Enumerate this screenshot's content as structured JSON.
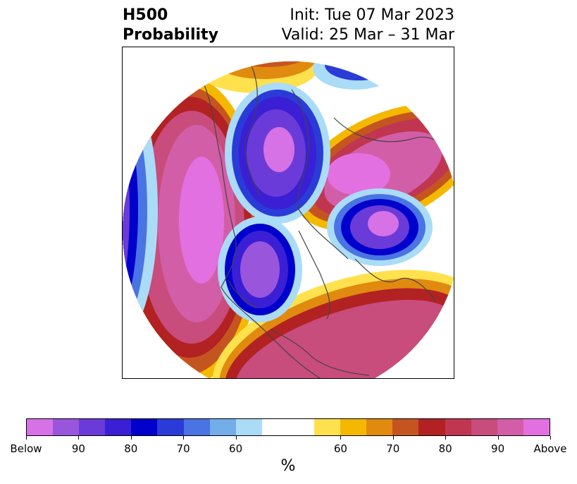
{
  "header": {
    "title_line1": "H500",
    "title_line2": "Probability",
    "init_label": "Init: Tue 07 Mar 2023",
    "valid_label": "Valid: 25 Mar – 31 Mar"
  },
  "map": {
    "projection": "north-polar-stereographic",
    "regions": {
      "below": {
        "label": "Below"
      },
      "above": {
        "label": "Above"
      }
    }
  },
  "colorbar": {
    "bins": [
      {
        "color": "#d671e6"
      },
      {
        "color": "#9a55dd"
      },
      {
        "color": "#6a3bd8"
      },
      {
        "color": "#3a1fd5"
      },
      {
        "color": "#0000cc"
      },
      {
        "color": "#2a3bd8"
      },
      {
        "color": "#4a73e3"
      },
      {
        "color": "#73aee8"
      },
      {
        "color": "#aadcf7"
      },
      {
        "color": "#ffffff"
      },
      {
        "color": "#ffe14d"
      },
      {
        "color": "#f5b800"
      },
      {
        "color": "#e08a10"
      },
      {
        "color": "#c55520"
      },
      {
        "color": "#b22222"
      },
      {
        "color": "#c03650"
      },
      {
        "color": "#c84c7c"
      },
      {
        "color": "#d35ea8"
      },
      {
        "color": "#e370e0"
      }
    ],
    "ticks": [
      "Below",
      "90",
      "80",
      "70",
      "60",
      "60",
      "70",
      "80",
      "90",
      "Above"
    ],
    "unit": "%"
  }
}
